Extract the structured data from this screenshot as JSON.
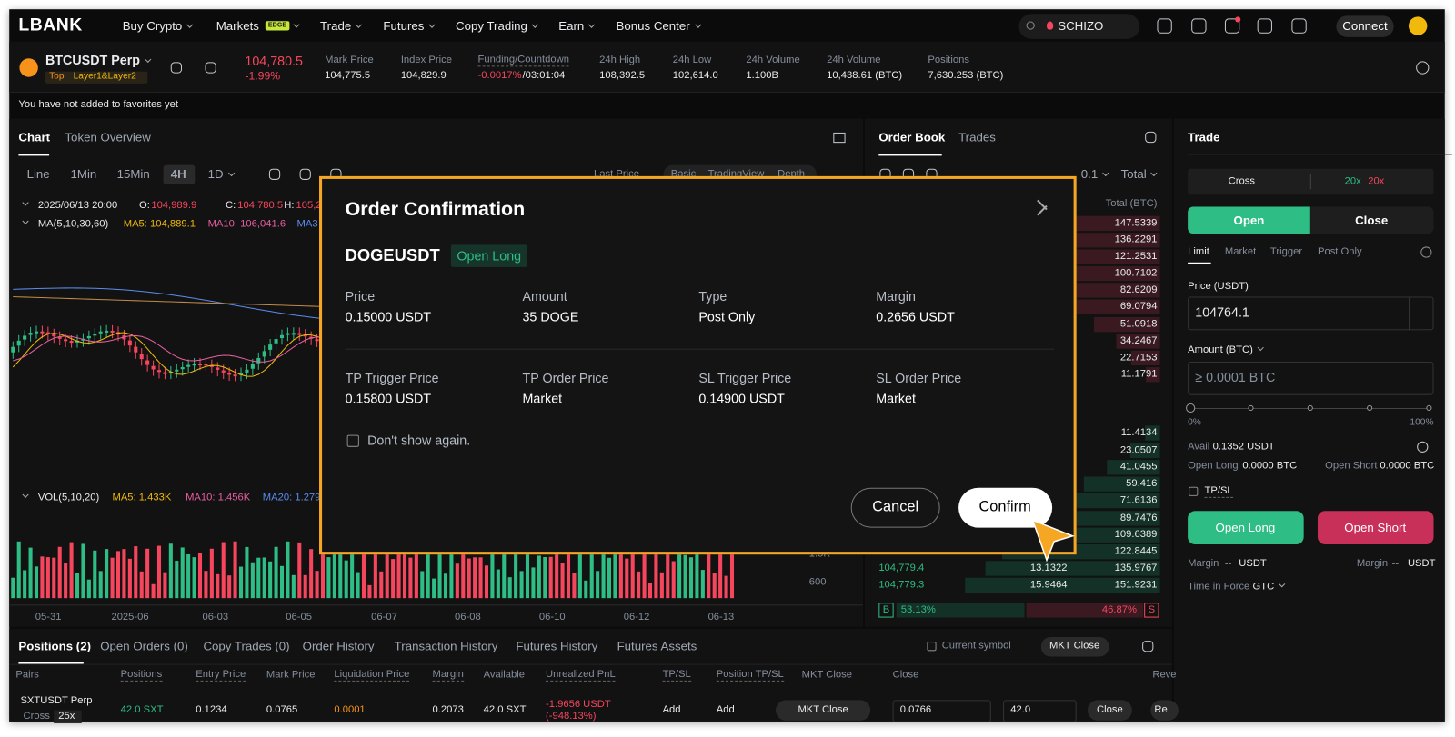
{
  "nav": {
    "logo": "LBANK",
    "items": [
      "Buy Crypto",
      "Markets",
      "Trade",
      "Futures",
      "Copy Trading",
      "Earn",
      "Bonus Center"
    ],
    "markets_badge": "EDGE",
    "search": "SCHIZO",
    "connect": "Connect"
  },
  "ticker": {
    "symbol": "BTCUSDT Perp",
    "tags": [
      "Top",
      "Layer1&Layer2"
    ],
    "price": "104,780.5",
    "change": "-1.99%",
    "stats": [
      {
        "label": "Mark Price",
        "value": "104,775.5"
      },
      {
        "label": "Index Price",
        "value": "104,829.9"
      },
      {
        "label": "Funding/Countdown",
        "value": "-0.0017%",
        "value2": "/03:01:04"
      },
      {
        "label": "24h High",
        "value": "108,392.5"
      },
      {
        "label": "24h Low",
        "value": "102,614.0"
      },
      {
        "label": "24h Volume",
        "value": "1.100B"
      },
      {
        "label": "24h Volume",
        "value": "10,438.61 (BTC)"
      },
      {
        "label": "Positions",
        "value": "7,630.253 (BTC)"
      }
    ]
  },
  "favorites_note": "You have not added to favorites yet",
  "chart_panel": {
    "tabs": [
      "Chart",
      "Token Overview"
    ],
    "intervals": [
      "Line",
      "1Min",
      "15Min",
      "4H",
      "1D"
    ],
    "view_tabs": [
      "Last Price",
      "Basic",
      "TradingView",
      "Depth"
    ],
    "ohlc_date": "2025/06/13 20:00",
    "o_label": "O:",
    "o": "104,989.9",
    "c_label": "C:",
    "c": "104,780.5",
    "h_label": "H:",
    "h": "105,2",
    "ma_label": "MA(5,10,30,60)",
    "ma5": "MA5: 104,889.1",
    "ma10": "MA10: 106,041.6",
    "ma3": "MA3",
    "vol_label": "VOL(5,10,20)",
    "vol_ma5": "MA5: 1.433K",
    "vol_ma10": "MA10: 1.456K",
    "vol_ma20": "MA20: 1.279",
    "vol_axis": [
      "1.5K",
      "600"
    ],
    "dates": [
      "05-31",
      "2025-06",
      "06-03",
      "06-05",
      "06-07",
      "06-08",
      "06-10",
      "06-12",
      "06-13"
    ]
  },
  "order_book": {
    "tabs": [
      "Order Book",
      "Trades"
    ],
    "step": "0.1",
    "total_label": "Total",
    "column": "Total (BTC)",
    "asks": [
      147.5339,
      136.2291,
      121.2531,
      100.7102,
      82.6209,
      69.0794,
      51.0918,
      34.2467,
      22.7153,
      11.1791
    ],
    "bids": [
      11.4134,
      23.0507,
      41.0455,
      59.416,
      71.6136,
      89.7476,
      109.6389,
      122.8445,
      135.9767,
      151.9231
    ],
    "bid_rows": [
      {
        "price": "104,779.4",
        "amount": 13.1322
      },
      {
        "price": "104,779.3",
        "amount": 15.9464
      }
    ],
    "buy_label": "B",
    "buy_ratio": "53.13%",
    "sell_ratio": "46.87%",
    "sell_label": "S"
  },
  "trade": {
    "title": "Trade",
    "cross": "Cross",
    "leverage_long": "20x",
    "leverage_short": "20x",
    "open": "Open",
    "close": "Close",
    "order_types": [
      "Limit",
      "Market",
      "Trigger",
      "Post Only"
    ],
    "price_label": "Price (USDT)",
    "price": "104764.1",
    "amount_label": "Amount (BTC)",
    "amount_placeholder": "≥ 0.0001 BTC",
    "slider_min": "0%",
    "slider_max": "100%",
    "avail_label": "Avail",
    "avail": "0.1352 USDT",
    "open_long_label": "Open Long",
    "open_long": "0.0000 BTC",
    "open_short_label": "Open Short",
    "open_short": "0.0000 BTC",
    "tpsl": "TP/SL",
    "open_long_button": "Open Long",
    "open_short_button": "Open Short",
    "margin_label": "Margin",
    "margin_value": "--",
    "margin_unit": "USDT",
    "tif_label": "Time in Force",
    "tif": "GTC"
  },
  "positions": {
    "tabs": [
      "Positions (2)",
      "Open Orders (0)",
      "Copy Trades (0)",
      "Order History",
      "Transaction History",
      "Futures History",
      "Futures Assets"
    ],
    "current_symbol": "Current symbol",
    "mkt_close_all": "MKT Close",
    "columns": [
      "Pairs",
      "Positions",
      "Entry Price",
      "Mark Price",
      "Liquidation Price",
      "Margin",
      "Available",
      "Unrealized PnL",
      "TP/SL",
      "Position TP/SL",
      "MKT Close",
      "Close",
      "Reve"
    ],
    "row": {
      "pair": "SXTUSDT Perp",
      "mode": "Cross",
      "leverage": "25x",
      "positions": "42.0 SXT",
      "entry": "0.1234",
      "mark": "0.0765",
      "liquidation": "0.0001",
      "margin": "0.2073",
      "available": "42.0 SXT",
      "pnl": "-1.9656 USDT",
      "pnl_pct": "(-948.13%)",
      "tpsl": "Add",
      "position_tpsl": "Add",
      "mkt_close": "MKT Close",
      "close_price": "0.0766",
      "close_amount": "42.0",
      "close": "Close",
      "reverse": "Re"
    }
  },
  "modal": {
    "title": "Order Confirmation",
    "pair": "DOGEUSDT",
    "side": "Open Long",
    "fields": [
      {
        "label": "Price",
        "value": "0.15000 USDT"
      },
      {
        "label": "Amount",
        "value": "35 DOGE"
      },
      {
        "label": "Type",
        "value": "Post Only"
      },
      {
        "label": "Margin",
        "value": "0.2656 USDT"
      },
      {
        "label": "TP Trigger Price",
        "value": "0.15800 USDT"
      },
      {
        "label": "TP Order Price",
        "value": "Market"
      },
      {
        "label": "SL Trigger Price",
        "value": "0.14900 USDT"
      },
      {
        "label": "SL Order Price",
        "value": "Market"
      }
    ],
    "dont_show": "Don't show again.",
    "cancel": "Cancel",
    "confirm": "Confirm"
  }
}
